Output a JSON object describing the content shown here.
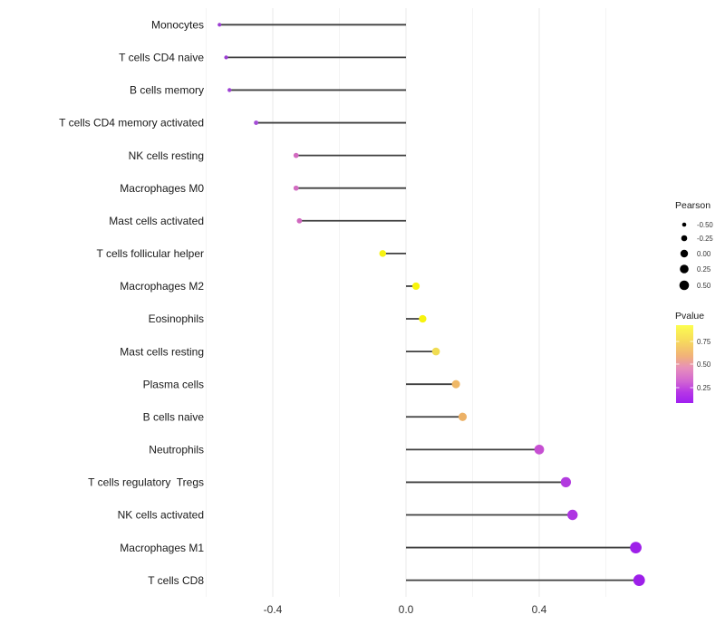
{
  "figure": {
    "background_color": "#ffffff",
    "stem_color": "#3f3f3f",
    "grid_major_color": "#e8e8e8",
    "grid_minor_color": "#f4f4f4",
    "axis_text_color": "#333333",
    "label_text_color": "#1a1a1a"
  },
  "chart_data": {
    "type": "lollipop",
    "orientation": "horizontal",
    "title": "",
    "xlabel": "",
    "ylabel": "",
    "x_axis": {
      "range": [
        -0.62,
        0.63
      ],
      "major_ticks": [
        -0.4,
        0.0,
        0.4
      ],
      "major_tick_labels": [
        "-0.4",
        "0.0",
        "0.4"
      ],
      "minor_ticks": [
        -0.6,
        -0.2,
        0.2,
        0.6
      ],
      "grid": true
    },
    "categories": [
      "Monocytes",
      "T cells CD4 naive",
      "B cells memory",
      "T cells CD4 memory activated",
      "NK cells resting",
      "Macrophages M0",
      "Mast cells activated",
      "T cells follicular helper",
      "Macrophages M2",
      "Eosinophils",
      "Mast cells resting",
      "Plasma cells",
      "B cells naive",
      "Neutrophils",
      "T cells regulatory  Tregs",
      "NK cells activated",
      "Macrophages M1",
      "T cells CD8"
    ],
    "series": [
      {
        "name": "Pearson",
        "values": [
          -0.56,
          -0.54,
          -0.53,
          -0.45,
          -0.33,
          -0.33,
          -0.32,
          -0.07,
          0.03,
          0.05,
          0.09,
          0.15,
          0.17,
          0.4,
          0.48,
          0.5,
          0.69,
          0.7
        ]
      }
    ],
    "point_colors": [
      "#9a3bd2",
      "#9b3cd3",
      "#9d41d3",
      "#a44cd6",
      "#d26ac0",
      "#d26cc1",
      "#d068bf",
      "#f6f213",
      "#f8f40c",
      "#f7f30e",
      "#f0dc52",
      "#efb867",
      "#ecb166",
      "#c64fd2",
      "#b23bdf",
      "#ae35e2",
      "#9e20e9",
      "#9d1fe9"
    ],
    "legend_size": {
      "title": "Pearson",
      "labels": [
        "-0.50",
        "-0.25",
        "0.00",
        "0.25",
        "0.50"
      ],
      "values": [
        -0.5,
        -0.25,
        0.0,
        0.25,
        0.5
      ],
      "dot_color": "#000000",
      "position": "right"
    },
    "legend_color": {
      "title": "Pvalue",
      "labels": [
        "0.75",
        "0.50",
        "0.25"
      ],
      "values": [
        0.75,
        0.5,
        0.25
      ],
      "gradient_top_to_bottom": [
        {
          "offset": 0.0,
          "color": "#fcfe4f"
        },
        {
          "offset": 0.2,
          "color": "#f7da5c"
        },
        {
          "offset": 0.4,
          "color": "#f1b179"
        },
        {
          "offset": 0.55,
          "color": "#e78fbb"
        },
        {
          "offset": 0.72,
          "color": "#d266d2"
        },
        {
          "offset": 0.86,
          "color": "#b637e6"
        },
        {
          "offset": 1.0,
          "color": "#a01ff0"
        }
      ],
      "position": "right"
    }
  }
}
